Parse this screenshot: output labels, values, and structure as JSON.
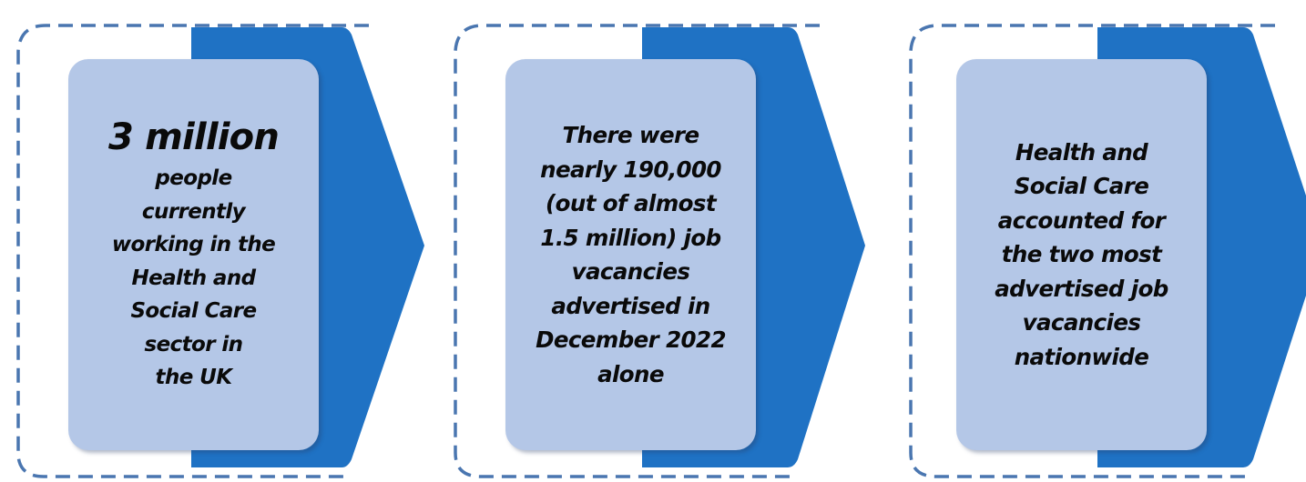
{
  "colors": {
    "arrow": "#1f72c4",
    "card": "#b4c7e7",
    "dashed_border": "#4a76b0",
    "text": "#0a0a0a"
  },
  "steps": [
    {
      "headline": "3 million",
      "lines": [
        "people",
        "currently",
        "working in the",
        "Health and",
        "Social Care",
        "sector in",
        "the UK"
      ]
    },
    {
      "lines": [
        "There were",
        "nearly 190,000",
        "(out of almost",
        "1.5 million) job",
        "vacancies",
        "advertised in",
        "December 2022",
        "alone"
      ]
    },
    {
      "lines": [
        "Health and",
        "Social Care",
        "accounted for",
        "the two most",
        "advertised job",
        "vacancies",
        "nationwide"
      ]
    }
  ]
}
